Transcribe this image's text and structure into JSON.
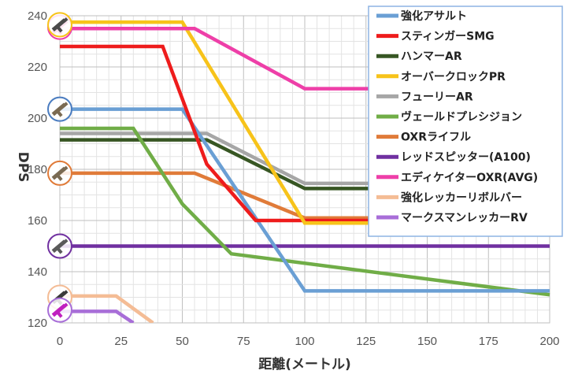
{
  "chart_data": {
    "type": "line",
    "title": "",
    "xlabel": "距離(メートル)",
    "ylabel": "DPS",
    "xlim": [
      0,
      200
    ],
    "ylim": [
      120,
      240
    ],
    "x_ticks": [
      0,
      25,
      50,
      75,
      100,
      125,
      150,
      175,
      200
    ],
    "y_ticks": [
      120,
      140,
      160,
      180,
      200,
      220,
      240
    ],
    "grid": true,
    "legend_position": "top-right",
    "series": [
      {
        "name": "強化アサルト",
        "color": "#6a9fd4",
        "points": [
          [
            0,
            203.5
          ],
          [
            50,
            203.5
          ],
          [
            100,
            132.5
          ],
          [
            200,
            132.5
          ]
        ]
      },
      {
        "name": "スティンガーSMG",
        "color": "#ee1c1c",
        "points": [
          [
            0,
            228
          ],
          [
            42,
            228
          ],
          [
            60,
            182
          ],
          [
            80,
            160
          ],
          [
            200,
            160
          ]
        ]
      },
      {
        "name": "ハンマーAR",
        "color": "#375623",
        "points": [
          [
            0,
            191.5
          ],
          [
            60,
            191.5
          ],
          [
            100,
            172.5
          ],
          [
            200,
            172.5
          ]
        ]
      },
      {
        "name": "オーバークロックPR",
        "color": "#f7c31a",
        "points": [
          [
            0,
            237.5
          ],
          [
            50,
            237.5
          ],
          [
            100,
            159
          ],
          [
            200,
            159
          ]
        ]
      },
      {
        "name": "フューリーAR",
        "color": "#a6a6a6",
        "points": [
          [
            0,
            194
          ],
          [
            60,
            194
          ],
          [
            100,
            174.5
          ],
          [
            200,
            174.5
          ]
        ]
      },
      {
        "name": "ヴェールドプレシジョン",
        "color": "#70ad47",
        "points": [
          [
            0,
            196
          ],
          [
            30,
            196
          ],
          [
            50,
            166.5
          ],
          [
            70,
            147
          ],
          [
            200,
            131
          ]
        ]
      },
      {
        "name": "OXRライフル",
        "color": "#e07b39",
        "points": [
          [
            0,
            178.5
          ],
          [
            55,
            178.5
          ],
          [
            100,
            161
          ],
          [
            200,
            161
          ]
        ]
      },
      {
        "name": "レッドスピッター(A100)",
        "color": "#7030a0",
        "points": [
          [
            0,
            150
          ],
          [
            200,
            150
          ]
        ]
      },
      {
        "name": "エディケイターOXR(AVG)",
        "color": "#ee3fa8",
        "points": [
          [
            0,
            235
          ],
          [
            55,
            235
          ],
          [
            100,
            211.5
          ],
          [
            200,
            211.5
          ]
        ]
      },
      {
        "name": "強化レッカーリボルバー",
        "color": "#f4bc95",
        "points": [
          [
            0,
            130.5
          ],
          [
            23,
            130.5
          ],
          [
            38,
            120
          ]
        ]
      },
      {
        "name": "マークスマンレッカーRV",
        "color": "#a86ed8",
        "points": [
          [
            0,
            124.5
          ],
          [
            23,
            124.5
          ],
          [
            30,
            120
          ]
        ]
      }
    ],
    "markers": [
      {
        "icon": "pink-gun-icon",
        "ring_color": "#ee3fa8",
        "x": 0,
        "y": 235.5
      },
      {
        "icon": "yellow-gun-icon",
        "ring_color": "#f7c31a",
        "x": 0,
        "y": 236.5
      },
      {
        "icon": "blue-gun-icon",
        "ring_color": "#4a7cc0",
        "x": 0,
        "y": 203.5
      },
      {
        "icon": "orange-gun-icon",
        "ring_color": "#e07b39",
        "x": 0,
        "y": 178.5
      },
      {
        "icon": "purple-gun-icon",
        "ring_color": "#7030a0",
        "x": 0,
        "y": 150
      },
      {
        "icon": "peach-revolver-icon",
        "ring_color": "#f4bc95",
        "x": 0,
        "y": 130
      },
      {
        "icon": "magenta-revolver-icon",
        "ring_color": "#a86ed8",
        "x": 0,
        "y": 125
      }
    ]
  }
}
